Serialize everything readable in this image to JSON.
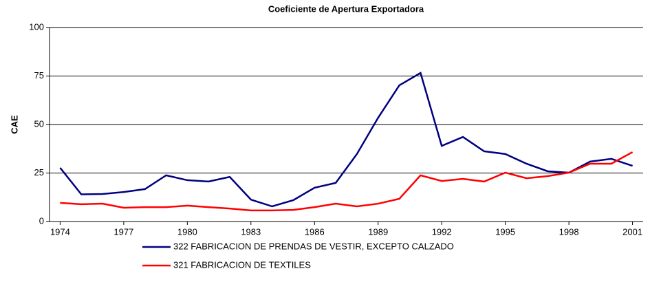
{
  "chart_data": {
    "type": "line",
    "title": "Coeficiente de Apertura Exportadora",
    "y_label": "CAE",
    "categories": [
      "1974",
      null,
      null,
      "1977",
      null,
      null,
      "1980",
      null,
      null,
      "1983",
      null,
      null,
      "1986",
      null,
      null,
      "1989",
      null,
      null,
      "1992",
      null,
      null,
      "1995",
      null,
      null,
      "1998",
      null,
      null,
      "2001"
    ],
    "series": [
      {
        "name": "322 FABRICACION DE PRENDAS DE VESTIR, EXCEPTO CALZADO",
        "color": "#000080",
        "values": [
          27.7,
          14,
          14.2,
          15.2,
          16.7,
          23.8,
          21.3,
          20.6,
          23,
          11.3,
          7.8,
          11,
          17.4,
          19.9,
          34.8,
          53.5,
          70.2,
          76.6,
          39,
          43.6,
          36.2,
          34.8,
          29.8,
          25.9,
          25.2,
          30.9,
          32.3,
          28.7
        ]
      },
      {
        "name": "321 FABRICACION DE TEXTILES",
        "color": "#ff0000",
        "values": [
          9.6,
          8.9,
          9.2,
          7.1,
          7.4,
          7.4,
          8.2,
          7.4,
          6.7,
          5.7,
          5.7,
          6,
          7.4,
          9.2,
          7.8,
          9.2,
          11.7,
          23.8,
          20.9,
          22,
          20.6,
          25.2,
          22.3,
          23.4,
          25.2,
          29.8,
          29.8,
          35.8
        ]
      }
    ],
    "ylim": [
      0,
      100
    ],
    "yticks": [
      0,
      25,
      50,
      75,
      100
    ],
    "grid": true,
    "legend": "bottom"
  }
}
